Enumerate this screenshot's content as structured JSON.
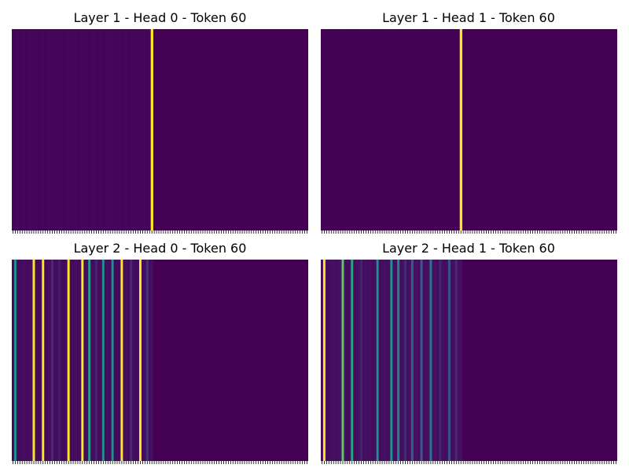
{
  "chart_data": [
    {
      "type": "heatmap",
      "title": "Layer 1 - Head 0 - Token 60",
      "n_tokens": 128,
      "colormap": "viridis",
      "bright_columns": [
        {
          "token": 60,
          "value": 1.0
        }
      ],
      "faint_band": {
        "from": 0,
        "to": 59,
        "value": 0.02
      },
      "background_value": 0.0
    },
    {
      "type": "heatmap",
      "title": "Layer 1 - Head 1 - Token 60",
      "n_tokens": 128,
      "colormap": "viridis",
      "bright_columns": [
        {
          "token": 60,
          "value": 1.0
        }
      ],
      "faint_band": {
        "from": 0,
        "to": 59,
        "value": 0.005
      },
      "background_value": 0.0
    },
    {
      "type": "heatmap",
      "title": "Layer 2 - Head 0 - Token 60",
      "n_tokens": 128,
      "colormap": "viridis",
      "bright_columns": [
        {
          "token": 1,
          "value": 0.5
        },
        {
          "token": 9,
          "value": 1.0
        },
        {
          "token": 13,
          "value": 1.0
        },
        {
          "token": 24,
          "value": 1.0
        },
        {
          "token": 30,
          "value": 1.0
        },
        {
          "token": 33,
          "value": 0.55
        },
        {
          "token": 39,
          "value": 0.5
        },
        {
          "token": 43,
          "value": 0.5
        },
        {
          "token": 47,
          "value": 1.0
        },
        {
          "token": 55,
          "value": 1.0
        },
        {
          "token": 17,
          "value": 0.12
        },
        {
          "token": 20,
          "value": 0.08
        },
        {
          "token": 36,
          "value": 0.1
        },
        {
          "token": 51,
          "value": 0.12
        },
        {
          "token": 58,
          "value": 0.15
        }
      ],
      "faint_band": {
        "from": 0,
        "to": 60,
        "value": 0.04
      },
      "background_value": 0.0
    },
    {
      "type": "heatmap",
      "title": "Layer 2 - Head 1 - Token 60",
      "n_tokens": 128,
      "colormap": "viridis",
      "bright_columns": [
        {
          "token": 1,
          "value": 1.0
        },
        {
          "token": 9,
          "value": 0.75
        },
        {
          "token": 13,
          "value": 0.6
        },
        {
          "token": 24,
          "value": 0.5
        },
        {
          "token": 30,
          "value": 0.5
        },
        {
          "token": 33,
          "value": 0.45
        },
        {
          "token": 39,
          "value": 0.3
        },
        {
          "token": 43,
          "value": 0.3
        },
        {
          "token": 47,
          "value": 0.4
        },
        {
          "token": 55,
          "value": 0.25
        },
        {
          "token": 17,
          "value": 0.1
        },
        {
          "token": 36,
          "value": 0.12
        },
        {
          "token": 51,
          "value": 0.1
        },
        {
          "token": 58,
          "value": 0.12
        }
      ],
      "faint_band": {
        "from": 0,
        "to": 60,
        "value": 0.05
      },
      "background_value": 0.0
    }
  ]
}
